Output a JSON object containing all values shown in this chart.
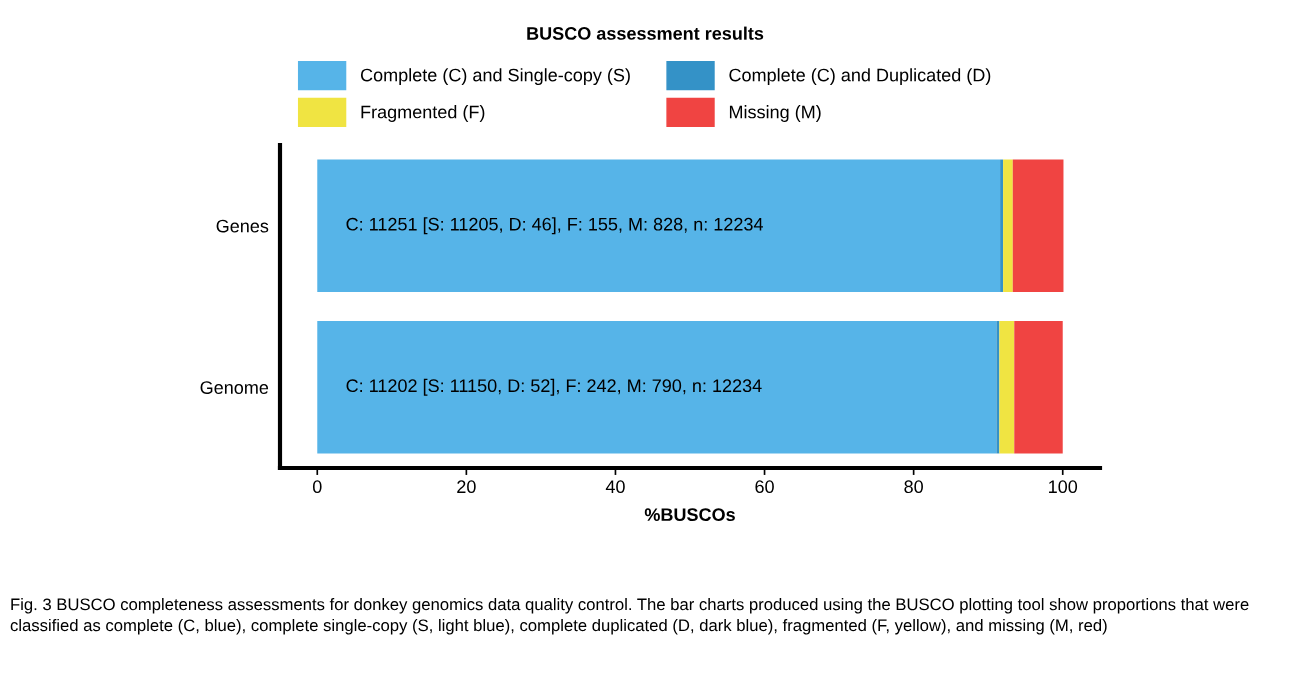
{
  "chart_data": {
    "type": "bar",
    "orientation": "horizontal",
    "stacked": true,
    "title": "BUSCO assessment results",
    "xlabel": "%BUSCOs",
    "categories": [
      "Genes",
      "Genome"
    ],
    "series": [
      {
        "name": "Complete (C) and Single-copy (S)",
        "color": "#56b4e8",
        "values": [
          91.6,
          91.1
        ]
      },
      {
        "name": "Complete (C) and Duplicated (D)",
        "color": "#3492c7",
        "values": [
          0.4,
          0.4
        ]
      },
      {
        "name": "Fragmented (F)",
        "color": "#f0e442",
        "values": [
          1.3,
          2.0
        ]
      },
      {
        "name": "Missing (M)",
        "color": "#f04442",
        "values": [
          6.8,
          6.5
        ]
      }
    ],
    "xlim": [
      -5,
      105
    ],
    "xticks": [
      0,
      20,
      40,
      60,
      80,
      100
    ],
    "grid": false,
    "legend": "top",
    "annotations": [
      "C: 11251 [S: 11205, D: 46], F: 155, M: 828, n: 12234",
      "C: 11202 [S: 11150, D: 52], F: 242, M: 790, n: 12234",
      "Fig. 3 BUSCO completeness assessments for donkey genomics data quality control. The bar charts produced using the BUSCO plotting tool show proportions that were classified as complete (C, blue), complete single-copy (S, light blue), complete duplicated (D, dark blue), fragmented (F, yellow), and missing (M, red)"
    ]
  }
}
